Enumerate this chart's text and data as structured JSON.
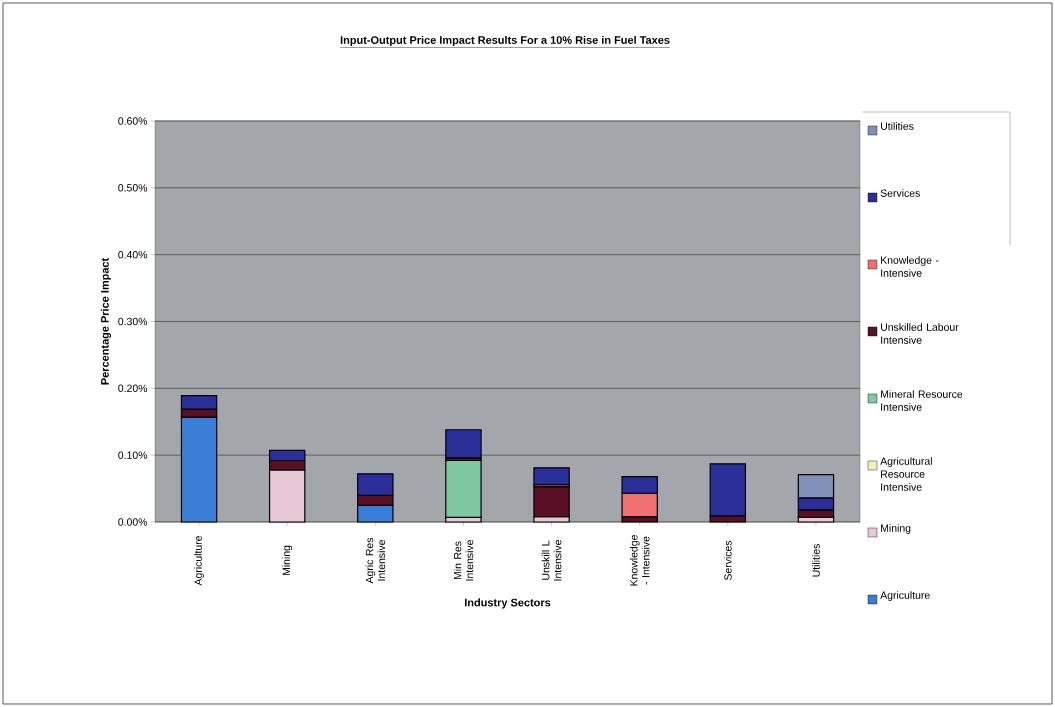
{
  "chart_data": {
    "type": "bar",
    "stacked": true,
    "title": "Input-Output Price Impact Results For a 10% Rise in Fuel Taxes",
    "xlabel": "Industry Sectors",
    "ylabel": "Percentage Price Impact",
    "categories": [
      "Agriculture",
      "Mining",
      "Agric Res Intensive",
      "Min Res Intensive",
      "Unskill L Intensive",
      "Knowledge - Intensive",
      "Services",
      "Utilities"
    ],
    "series": [
      {
        "name": "Agriculture",
        "color": "#3a7fd5",
        "values": [
          0.157,
          null,
          0.025,
          null,
          null,
          null,
          null,
          null
        ]
      },
      {
        "name": "Mining",
        "color": "#e8c8d8",
        "values": [
          null,
          0.078,
          null,
          0.007,
          0.008,
          null,
          null,
          0.007
        ]
      },
      {
        "name": "Agricultural Resource Intensive",
        "color": "#f0eec0",
        "values": [
          null,
          null,
          null,
          null,
          null,
          null,
          null,
          null
        ]
      },
      {
        "name": "Mineral Resource Intensive",
        "color": "#7fc8a0",
        "values": [
          null,
          null,
          null,
          0.085,
          null,
          null,
          null,
          null
        ]
      },
      {
        "name": "Unskilled Labour Intensive",
        "color": "#5a0f24",
        "values": [
          0.012,
          0.014,
          0.015,
          0.004,
          0.045,
          0.008,
          0.009,
          0.011
        ]
      },
      {
        "name": "Knowledge - Intensive",
        "color": "#f07070",
        "values": [
          null,
          null,
          null,
          null,
          0.003,
          0.035,
          null,
          null
        ]
      },
      {
        "name": "Services",
        "color": "#2a2f9a",
        "values": [
          0.02,
          0.015,
          0.032,
          0.042,
          0.025,
          0.025,
          0.078,
          0.018
        ]
      },
      {
        "name": "Utilities",
        "color": "#8090b8",
        "values": [
          null,
          null,
          null,
          null,
          null,
          null,
          null,
          0.035
        ]
      }
    ],
    "ylim": [
      0,
      0.6
    ],
    "yticks": [
      {
        "value": 0,
        "label": "0.00%"
      },
      {
        "value": 0.1,
        "label": "0.10%"
      },
      {
        "value": 0.2,
        "label": "0.20%"
      },
      {
        "value": 0.3,
        "label": "0.30%"
      },
      {
        "value": 0.4,
        "label": "0.40%"
      },
      {
        "value": 0.5,
        "label": "0.50%"
      },
      {
        "value": 0.6,
        "label": "0.60%"
      }
    ],
    "grid": "y",
    "legend": "right"
  }
}
